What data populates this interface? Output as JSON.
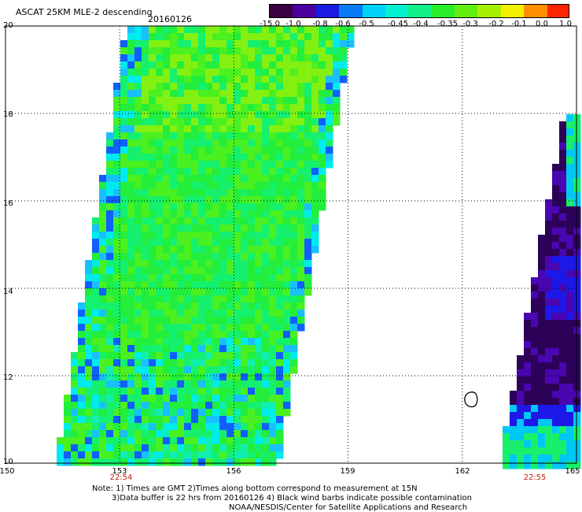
{
  "header": {
    "title": "ASCAT 25KM MLE-2 descending",
    "date": "20160126"
  },
  "colorbar": {
    "labels": [
      "-15.0",
      "-1.0",
      "-0.8",
      "-0.6",
      "-0.5",
      "-0.45",
      "-0.4",
      "-0.35",
      "-0.3",
      "-0.2",
      "-0.1",
      "0.0",
      "1.0"
    ],
    "colors": [
      "#3a0140",
      "#4b00a0",
      "#1a1ae0",
      "#0a7af5",
      "#00d2f8",
      "#00f0d0",
      "#12f08a",
      "#29ef2a",
      "#62ee10",
      "#a6ef00",
      "#f2ef00",
      "#ff8e00",
      "#ff2400"
    ]
  },
  "map": {
    "lat_labels": [
      "20",
      "18",
      "16",
      "14",
      "12",
      "10"
    ],
    "lon_labels": [
      "150",
      "153",
      "156",
      "159",
      "162",
      "165"
    ],
    "time_labels": [
      {
        "lon": 153,
        "text": "22:54"
      },
      {
        "lon": 164,
        "text": "22:55"
      }
    ],
    "lat_range": [
      10,
      20
    ],
    "lon_range": [
      150,
      165
    ],
    "grid": true,
    "swath_colors": {
      "main": [
        "#15f06e",
        "#22ee3b",
        "#4af020",
        "#10efb0",
        "#00ecec",
        "#19c0ff",
        "#1060ff",
        "#83f012"
      ],
      "right": [
        "#2c0258",
        "#2c0258",
        "#4a06b0",
        "#1c18e6",
        "#00c8f5",
        "#18ef6b"
      ]
    }
  },
  "notes": {
    "line1": "Note: 1) Times are GMT 2)Times along bottom correspond to measurement at 15N",
    "line2": "3)Data buffer is 22 hrs from 20160126 4) Black wind barbs indicate possible contamination",
    "line3": "NOAA/NESDIS/Center for Satellite Applications and Research"
  }
}
